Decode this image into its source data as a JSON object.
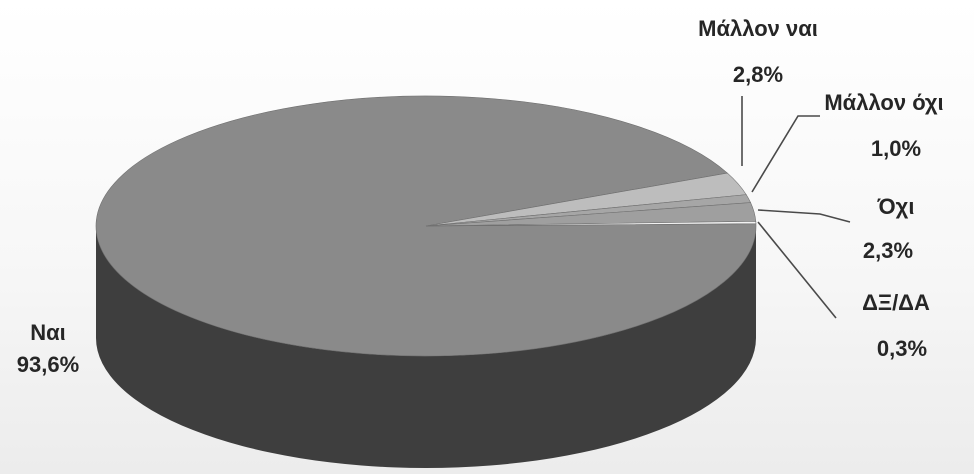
{
  "chart_data": {
    "type": "pie",
    "title": "",
    "slices": [
      {
        "name": "Ναι",
        "value": 93.6,
        "label": "93,6%",
        "color": "#8a8a8a",
        "side_color": "#3e3e3e"
      },
      {
        "name": "Μάλλον ναι",
        "value": 2.8,
        "label": "2,8%",
        "color": "#bdbdbd",
        "side_color": "#9a9a9a"
      },
      {
        "name": "Μάλλον όχι",
        "value": 1.0,
        "label": "1,0%",
        "color": "#a6a6a6",
        "side_color": "#8a8a8a"
      },
      {
        "name": "Όχι",
        "value": 2.3,
        "label": "2,3%",
        "color": "#9f9f9f",
        "side_color": "#a8a8a8"
      },
      {
        "name": "ΔΞ/ΔΑ",
        "value": 0.3,
        "label": "0,3%",
        "color": "#f2f2f2",
        "side_color": "#d0d0d0"
      }
    ],
    "style": "3d-pie",
    "legend": "none"
  }
}
